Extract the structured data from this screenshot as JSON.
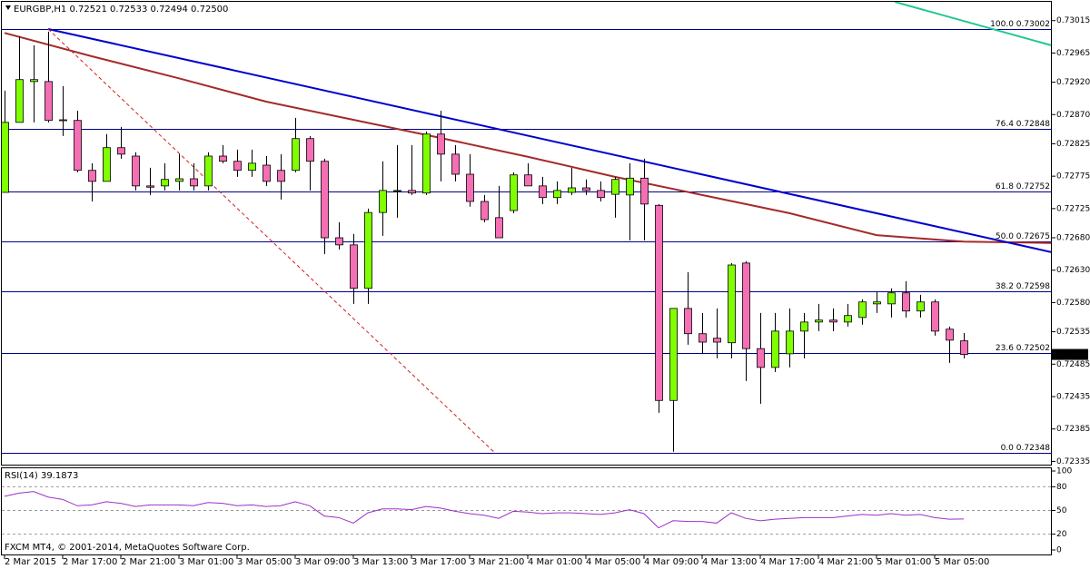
{
  "chart_data": {
    "type": "candlestick",
    "header": "EURGBP,H1  0.72521 0.72533 0.72494 0.72500",
    "categories": [
      "2 Mar 2015",
      null,
      null,
      null,
      "2 Mar 17:00",
      null,
      null,
      null,
      "2 Mar 21:00",
      null,
      null,
      null,
      "3 Mar 01:00",
      null,
      null,
      null,
      "3 Mar 05:00",
      null,
      null,
      null,
      "3 Mar 09:00",
      null,
      null,
      null,
      "3 Mar 13:00",
      null,
      null,
      null,
      "3 Mar 17:00",
      null,
      null,
      null,
      "3 Mar 21:00",
      null,
      null,
      null,
      "4 Mar 01:00",
      null,
      null,
      null,
      "4 Mar 05:00",
      null,
      null,
      null,
      "4 Mar 09:00",
      null,
      null,
      null,
      "4 Mar 13:00",
      null,
      null,
      null,
      "4 Mar 17:00",
      null,
      null,
      null,
      "4 Mar 21:00",
      null,
      null,
      null,
      "5 Mar 01:00",
      null,
      null,
      null,
      "5 Mar 05:00",
      null,
      null
    ],
    "open": [
      0.7275,
      0.72858,
      0.72921,
      0.72921,
      0.72862,
      0.72861,
      0.72784,
      0.72767,
      0.72819,
      0.72806,
      0.7276,
      0.7276,
      0.72767,
      0.72771,
      0.7276,
      0.72806,
      0.72798,
      0.72784,
      0.72792,
      0.72784,
      0.72784,
      0.72833,
      0.72798,
      0.7268,
      0.72669,
      0.72602,
      0.72719,
      0.72753,
      0.72753,
      0.72749,
      0.7284,
      0.72809,
      0.72778,
      0.72736,
      0.72711,
      0.72722,
      0.72777,
      0.7276,
      0.72742,
      0.7275,
      0.72757,
      0.72753,
      0.72747,
      0.72746,
      0.72772,
      0.7273,
      0.72429,
      0.72571,
      0.72532,
      0.72525,
      0.72518,
      0.72641,
      0.72509,
      0.7248,
      0.72501,
      0.72536,
      0.7255,
      0.72553,
      0.7255,
      0.72557,
      0.72578,
      0.72578,
      0.72595,
      0.72567,
      0.72581,
      0.72539,
      0.72521
    ],
    "high": [
      0.72907,
      0.72991,
      0.72977,
      0.72998,
      0.72914,
      0.72876,
      0.72795,
      0.7284,
      0.72851,
      0.72812,
      0.72788,
      0.72795,
      0.72809,
      0.72795,
      0.72812,
      0.72823,
      0.72816,
      0.72816,
      0.72806,
      0.72809,
      0.72865,
      0.72837,
      0.72802,
      0.72704,
      0.72686,
      0.72725,
      0.72798,
      0.72823,
      0.72823,
      0.72844,
      0.72876,
      0.72823,
      0.72809,
      0.72746,
      0.7276,
      0.72781,
      0.72795,
      0.72774,
      0.72767,
      0.72788,
      0.7277,
      0.72767,
      0.72774,
      0.72795,
      0.72802,
      0.72732,
      0.72571,
      0.72627,
      0.72564,
      0.72571,
      0.72641,
      0.72644,
      0.72564,
      0.72564,
      0.72571,
      0.72564,
      0.72578,
      0.72571,
      0.72578,
      0.72585,
      0.72596,
      0.72602,
      0.72613,
      0.72592,
      0.72585,
      0.72543,
      0.72533
    ],
    "low": [
      0.7275,
      0.72858,
      0.72858,
      0.72858,
      0.72837,
      0.72781,
      0.72736,
      0.72767,
      0.72802,
      0.72753,
      0.72746,
      0.72753,
      0.72753,
      0.72753,
      0.72753,
      0.72795,
      0.72774,
      0.72774,
      0.7276,
      0.72739,
      0.72781,
      0.72753,
      0.72655,
      0.72662,
      0.72578,
      0.72578,
      0.72683,
      0.72711,
      0.72746,
      0.72746,
      0.72767,
      0.72767,
      0.72728,
      0.72704,
      0.7268,
      0.72718,
      0.7276,
      0.72732,
      0.72732,
      0.72746,
      0.72746,
      0.72736,
      0.72711,
      0.72676,
      0.72676,
      0.7241,
      0.7235,
      0.72515,
      0.72501,
      0.72494,
      0.72494,
      0.72459,
      0.72424,
      0.72473,
      0.7248,
      0.72494,
      0.72536,
      0.72536,
      0.72543,
      0.72546,
      0.72564,
      0.72557,
      0.72557,
      0.72557,
      0.72529,
      0.72487,
      0.72494
    ],
    "close": [
      0.72858,
      0.72924,
      0.72924,
      0.72861,
      0.72861,
      0.72784,
      0.72767,
      0.72819,
      0.72809,
      0.7276,
      0.72758,
      0.7277,
      0.72771,
      0.7276,
      0.72806,
      0.72798,
      0.72784,
      0.72795,
      0.72767,
      0.72767,
      0.72833,
      0.72798,
      0.7268,
      0.72669,
      0.72602,
      0.72719,
      0.72753,
      0.72753,
      0.72749,
      0.7284,
      0.72809,
      0.72778,
      0.72736,
      0.72708,
      0.7268,
      0.72777,
      0.7276,
      0.72742,
      0.72753,
      0.72757,
      0.72753,
      0.72742,
      0.7277,
      0.72772,
      0.72732,
      0.72429,
      0.72571,
      0.72532,
      0.72519,
      0.72519,
      0.72638,
      0.72509,
      0.7248,
      0.72536,
      0.72536,
      0.7255,
      0.72553,
      0.7255,
      0.7256,
      0.72581,
      0.72581,
      0.72595,
      0.72567,
      0.72581,
      0.72536,
      0.72522,
      0.725
    ],
    "up_color": "#80ff00",
    "down_color": "#f46fb4",
    "ylim": [
      0.7233,
      0.73044
    ],
    "yticks": [
      0.73015,
      0.72965,
      {
        "value": 0.7292,
        "label": "0.72920"
      },
      {
        "value": 0.7287,
        "label": "0.72870"
      },
      0.72825,
      0.72775,
      0.72725,
      {
        "value": 0.7268,
        "label": "0.72680"
      },
      {
        "value": 0.7263,
        "label": "0.72630"
      },
      {
        "value": 0.7258,
        "label": "0.72580"
      },
      0.72535,
      0.72485,
      0.72435,
      0.72385,
      0.72335
    ],
    "current_price": {
      "value": 0.725,
      "label": "0.72500"
    },
    "fibonacci": {
      "color": "#00008b",
      "levels": [
        {
          "value": 0.73002,
          "label": "100.0 0.73002"
        },
        {
          "value": 0.72848,
          "label": "76.4 0.72848"
        },
        {
          "value": 0.72752,
          "label": "61.8 0.72752"
        },
        {
          "value": 0.72675,
          "label": "50.0 0.72675"
        },
        {
          "value": 0.72598,
          "label": "38.2 0.72598"
        },
        {
          "value": 0.72502,
          "label": "23.6 0.72502"
        },
        {
          "value": 0.72348,
          "label": "0.0 0.72348"
        }
      ]
    },
    "lines": [
      {
        "color": "#a52a2a",
        "width": 2,
        "x": [
          0,
          6,
          12,
          18,
          24,
          30,
          36,
          42,
          48,
          54,
          60,
          66,
          72
        ],
        "values": [
          0.72996,
          0.7296,
          0.72926,
          0.7289,
          0.72862,
          0.72834,
          0.72805,
          0.72774,
          0.72746,
          0.72718,
          0.72684,
          0.72674,
          0.72672
        ]
      },
      {
        "color": "#0000cd",
        "width": 2,
        "x": [
          3,
          72
        ],
        "values": [
          0.73002,
          0.72658
        ]
      },
      {
        "color": "#d02020",
        "width": 1,
        "dashed": true,
        "x": [
          3,
          33.75
        ],
        "values": [
          0.73002,
          0.72348
        ]
      },
      {
        "color": "#20c890",
        "width": 2,
        "x": [
          61.25,
          72
        ],
        "values": [
          0.73044,
          0.72977
        ]
      }
    ],
    "rsi": {
      "title": "RSI(14) 39.1873",
      "color": "#9b30c8",
      "ylim": [
        0,
        100
      ],
      "yticks": [
        100,
        80,
        50,
        20,
        0
      ],
      "values": [
        68,
        72,
        74,
        67,
        64,
        56,
        57,
        61,
        59,
        55,
        57,
        57,
        57,
        56,
        60,
        59,
        56,
        57,
        55,
        56,
        61,
        56,
        43,
        41,
        34,
        47,
        52,
        52,
        51,
        55,
        53,
        49,
        46,
        44,
        40,
        49,
        48,
        46,
        47,
        47,
        46,
        45,
        47,
        51,
        46,
        28,
        37,
        36,
        36,
        34,
        47,
        40,
        37,
        39,
        40,
        41,
        41,
        41,
        43,
        45,
        44,
        46,
        44,
        45,
        41,
        39,
        39.1873
      ]
    },
    "footer": "FXCM MT4, © 2001-2014, MetaQuotes Software Corp."
  }
}
